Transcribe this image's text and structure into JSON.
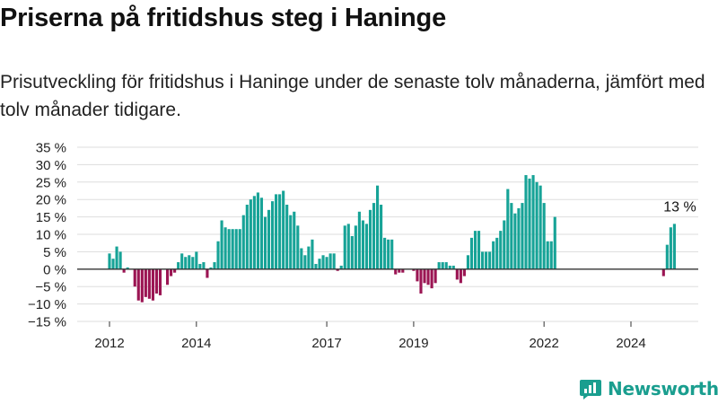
{
  "title": "Priserna på fritidshus steg i Haninge",
  "subtitle": "Prisutveckling för fritidshus i Haninge under de senaste tolv månaderna, jämfört med tolv månader tidigare.",
  "brand": "Newsworthy",
  "colors": {
    "positive": "#17a397",
    "negative": "#9b1553",
    "gridline": "#dddddd",
    "baseline": "#333333",
    "brand": "#1a9e8f"
  },
  "chart_data": {
    "type": "bar",
    "ylabel": "",
    "xlabel": "",
    "ylim": [
      -15,
      35
    ],
    "yticks": [
      35,
      30,
      25,
      20,
      15,
      10,
      5,
      0,
      -5,
      -10,
      -15
    ],
    "ytick_labels": [
      "35 %",
      "30 %",
      "25 %",
      "20 %",
      "15 %",
      "10 %",
      "5 %",
      "0 %",
      "−5 %",
      "−10 %",
      "−15 %"
    ],
    "xtick_labels": [
      "2012",
      "2014",
      "2017",
      "2019",
      "2022",
      "2024"
    ],
    "xtick_positions": [
      "2012-01",
      "2014-01",
      "2017-01",
      "2019-01",
      "2022-01",
      "2024-01"
    ],
    "grid": true,
    "annotation": {
      "text": "13 %",
      "date": "2025-03",
      "value": 13
    },
    "series": [
      {
        "values": [
          {
            "date": "2012-01",
            "value": 4.5
          },
          {
            "date": "2012-02",
            "value": 3
          },
          {
            "date": "2012-03",
            "value": 6.5
          },
          {
            "date": "2012-04",
            "value": 5
          },
          {
            "date": "2012-05",
            "value": -1
          },
          {
            "date": "2012-06",
            "value": 0.5
          },
          {
            "date": "2012-07",
            "value": 0
          },
          {
            "date": "2012-08",
            "value": -5
          },
          {
            "date": "2012-09",
            "value": -9
          },
          {
            "date": "2012-10",
            "value": -9.5
          },
          {
            "date": "2012-11",
            "value": -8
          },
          {
            "date": "2012-12",
            "value": -8.5
          },
          {
            "date": "2013-01",
            "value": -9
          },
          {
            "date": "2013-02",
            "value": -7
          },
          {
            "date": "2013-03",
            "value": -7.5
          },
          {
            "date": "2013-04",
            "value": 0
          },
          {
            "date": "2013-05",
            "value": -4.5
          },
          {
            "date": "2013-06",
            "value": -2
          },
          {
            "date": "2013-07",
            "value": -1
          },
          {
            "date": "2013-08",
            "value": 2
          },
          {
            "date": "2013-09",
            "value": 4.5
          },
          {
            "date": "2013-10",
            "value": 3.5
          },
          {
            "date": "2013-11",
            "value": 4
          },
          {
            "date": "2013-12",
            "value": 3.5
          },
          {
            "date": "2014-01",
            "value": 5
          },
          {
            "date": "2014-02",
            "value": 1.5
          },
          {
            "date": "2014-03",
            "value": 2
          },
          {
            "date": "2014-04",
            "value": -2.5
          },
          {
            "date": "2014-05",
            "value": 0.5
          },
          {
            "date": "2014-06",
            "value": 2
          },
          {
            "date": "2014-07",
            "value": 8
          },
          {
            "date": "2014-08",
            "value": 14
          },
          {
            "date": "2014-09",
            "value": 12
          },
          {
            "date": "2014-10",
            "value": 11.5
          },
          {
            "date": "2014-11",
            "value": 11.5
          },
          {
            "date": "2014-12",
            "value": 11.5
          },
          {
            "date": "2015-01",
            "value": 11.5
          },
          {
            "date": "2015-02",
            "value": 15.5
          },
          {
            "date": "2015-03",
            "value": 18.5
          },
          {
            "date": "2015-04",
            "value": 20
          },
          {
            "date": "2015-05",
            "value": 21
          },
          {
            "date": "2015-06",
            "value": 22
          },
          {
            "date": "2015-07",
            "value": 20.5
          },
          {
            "date": "2015-08",
            "value": 15
          },
          {
            "date": "2015-09",
            "value": 17
          },
          {
            "date": "2015-10",
            "value": 19.5
          },
          {
            "date": "2015-11",
            "value": 21.5
          },
          {
            "date": "2015-12",
            "value": 21.5
          },
          {
            "date": "2016-01",
            "value": 22.5
          },
          {
            "date": "2016-02",
            "value": 18.5
          },
          {
            "date": "2016-03",
            "value": 15.5
          },
          {
            "date": "2016-04",
            "value": 16.5
          },
          {
            "date": "2016-05",
            "value": 12.5
          },
          {
            "date": "2016-06",
            "value": 6
          },
          {
            "date": "2016-07",
            "value": 4
          },
          {
            "date": "2016-08",
            "value": 6.5
          },
          {
            "date": "2016-09",
            "value": 8.5
          },
          {
            "date": "2016-10",
            "value": 1.5
          },
          {
            "date": "2016-11",
            "value": 3
          },
          {
            "date": "2016-12",
            "value": 4
          },
          {
            "date": "2017-01",
            "value": 3.5
          },
          {
            "date": "2017-02",
            "value": 4.5
          },
          {
            "date": "2017-03",
            "value": 4.5
          },
          {
            "date": "2017-04",
            "value": -0.5
          },
          {
            "date": "2017-05",
            "value": 1
          },
          {
            "date": "2017-06",
            "value": 12.5
          },
          {
            "date": "2017-07",
            "value": 13
          },
          {
            "date": "2017-08",
            "value": 9.5
          },
          {
            "date": "2017-09",
            "value": 12.5
          },
          {
            "date": "2017-10",
            "value": 16.5
          },
          {
            "date": "2017-11",
            "value": 14
          },
          {
            "date": "2017-12",
            "value": 13
          },
          {
            "date": "2018-01",
            "value": 17
          },
          {
            "date": "2018-02",
            "value": 19
          },
          {
            "date": "2018-03",
            "value": 24
          },
          {
            "date": "2018-04",
            "value": 18.5
          },
          {
            "date": "2018-05",
            "value": 9
          },
          {
            "date": "2018-06",
            "value": 8.5
          },
          {
            "date": "2018-07",
            "value": 8.5
          },
          {
            "date": "2018-08",
            "value": -1.5
          },
          {
            "date": "2018-09",
            "value": -1
          },
          {
            "date": "2018-10",
            "value": -1
          },
          {
            "date": "2018-11",
            "value": 0
          },
          {
            "date": "2018-12",
            "value": 0
          },
          {
            "date": "2019-01",
            "value": -0.5
          },
          {
            "date": "2019-02",
            "value": -3.5
          },
          {
            "date": "2019-03",
            "value": -7
          },
          {
            "date": "2019-04",
            "value": -4
          },
          {
            "date": "2019-05",
            "value": -4.5
          },
          {
            "date": "2019-06",
            "value": -5.5
          },
          {
            "date": "2019-07",
            "value": -4
          },
          {
            "date": "2019-08",
            "value": 2
          },
          {
            "date": "2019-09",
            "value": 2
          },
          {
            "date": "2019-10",
            "value": 2
          },
          {
            "date": "2019-11",
            "value": 1
          },
          {
            "date": "2019-12",
            "value": 1
          },
          {
            "date": "2020-01",
            "value": -3
          },
          {
            "date": "2020-02",
            "value": -4
          },
          {
            "date": "2020-03",
            "value": -2
          },
          {
            "date": "2020-04",
            "value": 4
          },
          {
            "date": "2020-05",
            "value": 9
          },
          {
            "date": "2020-06",
            "value": 11
          },
          {
            "date": "2020-07",
            "value": 11
          },
          {
            "date": "2020-08",
            "value": 5
          },
          {
            "date": "2020-09",
            "value": 5
          },
          {
            "date": "2020-10",
            "value": 5
          },
          {
            "date": "2020-11",
            "value": 8
          },
          {
            "date": "2020-12",
            "value": 9
          },
          {
            "date": "2021-01",
            "value": 11
          },
          {
            "date": "2021-02",
            "value": 14
          },
          {
            "date": "2021-03",
            "value": 23
          },
          {
            "date": "2021-04",
            "value": 19
          },
          {
            "date": "2021-05",
            "value": 16
          },
          {
            "date": "2021-06",
            "value": 17.5
          },
          {
            "date": "2021-07",
            "value": 19
          },
          {
            "date": "2021-08",
            "value": 27
          },
          {
            "date": "2021-09",
            "value": 26
          },
          {
            "date": "2021-10",
            "value": 27
          },
          {
            "date": "2021-11",
            "value": 25
          },
          {
            "date": "2021-12",
            "value": 24
          },
          {
            "date": "2022-01",
            "value": 19
          },
          {
            "date": "2022-02",
            "value": 8
          },
          {
            "date": "2022-03",
            "value": 8
          },
          {
            "date": "2022-04",
            "value": 15
          },
          {
            "date": "2024-10",
            "value": -2
          },
          {
            "date": "2024-11",
            "value": 7
          },
          {
            "date": "2024-12",
            "value": 12
          },
          {
            "date": "2025-01",
            "value": 13
          }
        ]
      }
    ]
  }
}
